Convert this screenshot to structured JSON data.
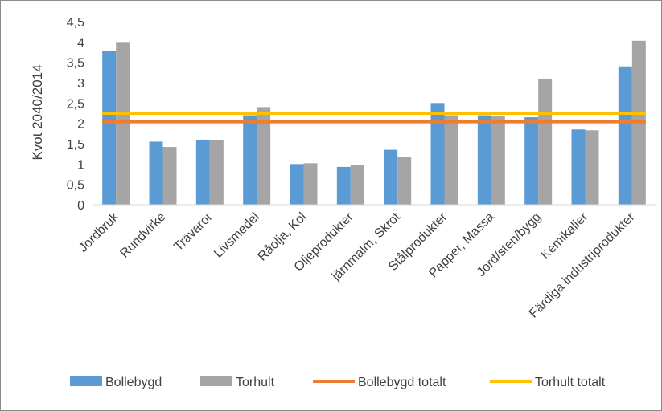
{
  "chart_data": {
    "type": "bar",
    "title": "",
    "xlabel": "",
    "ylabel": "Kvot 2040/2014",
    "ylim": [
      0,
      4.5
    ],
    "yticks": [
      "0",
      "0,5",
      "1",
      "1,5",
      "2",
      "2,5",
      "3",
      "3,5",
      "4",
      "4,5"
    ],
    "grid": false,
    "legend_position": "bottom",
    "categories": [
      "Jordbruk",
      "Rundvirke",
      "Trävaror",
      "Livsmedel",
      "Råolja, Kol",
      "Oljeprodukter",
      "järnmalm, Skrot",
      "Stålprodukter",
      "Papper, Massa",
      "Jord/sten/bygg",
      "Kemikalier",
      "Färdiga industriprodukter"
    ],
    "series": [
      {
        "name": "Bollebygd",
        "color": "#5b9bd5",
        "values": [
          3.78,
          1.55,
          1.6,
          2.2,
          1.0,
          0.93,
          1.35,
          2.5,
          2.2,
          2.15,
          1.85,
          3.4
        ]
      },
      {
        "name": "Torhult",
        "color": "#a5a5a5",
        "values": [
          4.0,
          1.42,
          1.58,
          2.4,
          1.02,
          0.98,
          1.18,
          2.2,
          2.17,
          3.1,
          1.83,
          4.03
        ]
      }
    ],
    "reference_lines": [
      {
        "name": "Bollebygd totalt",
        "color": "#ed7d31",
        "value": 2.04
      },
      {
        "name": "Torhult totalt",
        "color": "#ffc000",
        "value": 2.25
      }
    ]
  }
}
